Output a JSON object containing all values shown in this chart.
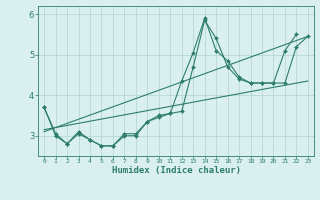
{
  "xlabel": "Humidex (Indice chaleur)",
  "x_values": [
    0,
    1,
    2,
    3,
    4,
    5,
    6,
    7,
    8,
    9,
    10,
    11,
    12,
    13,
    14,
    15,
    16,
    17,
    18,
    19,
    20,
    21,
    22,
    23
  ],
  "line1": [
    3.7,
    3.0,
    2.8,
    3.05,
    2.9,
    2.75,
    2.75,
    3.0,
    3.0,
    3.35,
    3.5,
    3.55,
    3.6,
    4.7,
    5.85,
    5.4,
    4.7,
    4.4,
    4.3,
    4.3,
    4.3,
    5.1,
    5.5,
    null
  ],
  "line2": [
    3.7,
    3.05,
    2.8,
    3.1,
    2.9,
    2.75,
    2.75,
    3.05,
    3.05,
    3.35,
    3.45,
    3.55,
    4.35,
    5.05,
    5.9,
    5.1,
    4.85,
    4.45,
    4.3,
    4.3,
    4.3,
    4.3,
    5.2,
    5.45
  ],
  "line3_x": [
    0,
    23
  ],
  "line3_y": [
    3.1,
    5.45
  ],
  "line4_x": [
    0,
    23
  ],
  "line4_y": [
    3.15,
    4.35
  ],
  "color": "#2d7d6e",
  "bg_color": "#daf0ee",
  "grid_color": "#b8d8d4",
  "ylim": [
    2.5,
    6.2
  ],
  "xlim": [
    -0.5,
    23.5
  ],
  "yticks": [
    3,
    4,
    5,
    6
  ],
  "xtick_labels": [
    "0",
    "1",
    "2",
    "3",
    "4",
    "5",
    "6",
    "7",
    "8",
    "9",
    "10",
    "11",
    "12",
    "13",
    "14",
    "15",
    "16",
    "17",
    "18",
    "19",
    "20",
    "21",
    "22",
    "23"
  ]
}
